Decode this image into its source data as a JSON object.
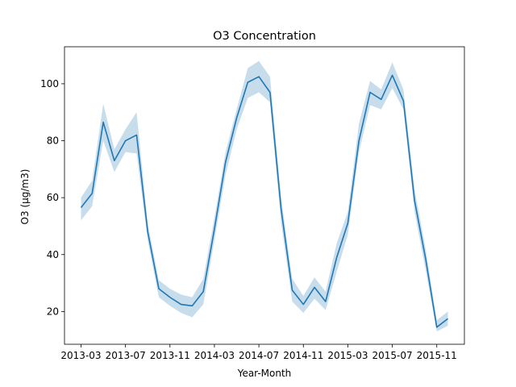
{
  "chart_data": {
    "type": "line",
    "title": "O3 Concentration",
    "xlabel": "Year-Month",
    "ylabel": "O3 (µg/m3)",
    "x": [
      "2013-03",
      "2013-04",
      "2013-05",
      "2013-06",
      "2013-07",
      "2013-08",
      "2013-09",
      "2013-10",
      "2013-11",
      "2013-12",
      "2014-01",
      "2014-02",
      "2014-03",
      "2014-04",
      "2014-05",
      "2014-06",
      "2014-07",
      "2014-08",
      "2014-09",
      "2014-10",
      "2014-11",
      "2014-12",
      "2015-01",
      "2015-02",
      "2015-03",
      "2015-04",
      "2015-05",
      "2015-06",
      "2015-07",
      "2015-08",
      "2015-09",
      "2015-10",
      "2015-11",
      "2015-12"
    ],
    "xticks": [
      "2013-03",
      "2013-07",
      "2013-11",
      "2014-03",
      "2014-07",
      "2014-11",
      "2015-03",
      "2015-07",
      "2015-11"
    ],
    "series": [
      {
        "values": [
          56.5,
          61.5,
          86.5,
          73,
          80,
          82,
          48,
          28,
          25,
          22.5,
          22,
          27,
          49,
          72.5,
          88,
          100.5,
          102.5,
          97,
          56,
          27.5,
          22.5,
          28.5,
          23.5,
          39,
          51,
          80,
          97,
          94.5,
          103,
          94,
          59,
          38.5,
          14.5,
          17.5
        ],
        "lower": [
          52,
          57,
          80,
          69,
          76,
          75.5,
          45,
          25,
          22,
          19.5,
          18,
          22.5,
          45,
          68,
          84,
          95,
          97,
          93.5,
          51,
          23.5,
          19.5,
          24.5,
          20.5,
          34,
          47,
          76,
          92.5,
          91,
          98.5,
          91,
          55,
          34.5,
          13,
          15
        ],
        "upper": [
          60,
          66,
          93,
          77,
          84,
          90,
          51,
          31,
          28,
          26,
          25,
          31.5,
          53,
          76,
          91,
          105.5,
          108,
          102.5,
          60,
          31.5,
          25.5,
          32,
          27,
          44,
          55,
          86,
          101,
          98,
          107.5,
          98,
          63,
          42,
          17,
          20
        ],
        "color": "#1f77b4",
        "band_color": "#1f77b4"
      }
    ],
    "yticks": [
      20,
      40,
      60,
      80,
      100
    ],
    "ylim": [
      8.5,
      113
    ],
    "grid": false,
    "legend": "none"
  }
}
